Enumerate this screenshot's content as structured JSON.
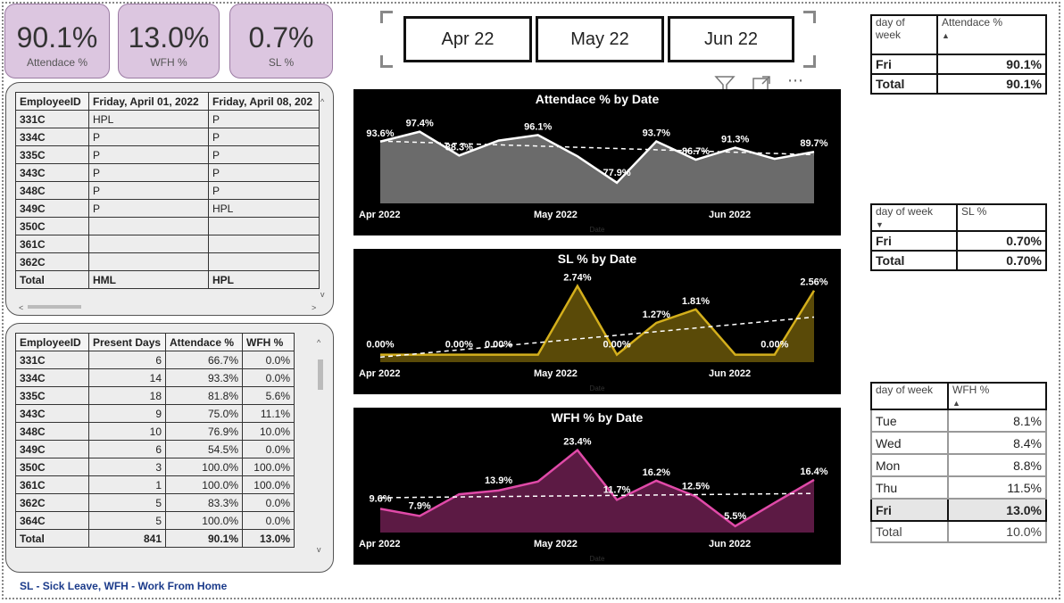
{
  "kpis": [
    {
      "value": "90.1%",
      "label": "Attendace %"
    },
    {
      "value": "13.0%",
      "label": "WFH %"
    },
    {
      "value": "0.7%",
      "label": "SL %"
    }
  ],
  "months": [
    "Apr 22",
    "May 22",
    "Jun 22"
  ],
  "attendance_table": {
    "headers": [
      "EmployeeID",
      "Friday, April 01, 2022",
      "Friday, April 08, 202"
    ],
    "rows": [
      [
        "331C",
        "HPL",
        "P"
      ],
      [
        "334C",
        "P",
        "P"
      ],
      [
        "335C",
        "P",
        "P"
      ],
      [
        "343C",
        "P",
        "P"
      ],
      [
        "348C",
        "P",
        "P"
      ],
      [
        "349C",
        "P",
        "HPL"
      ],
      [
        "350C",
        "",
        ""
      ],
      [
        "361C",
        "",
        ""
      ],
      [
        "362C",
        "",
        ""
      ]
    ],
    "total": [
      "Total",
      "HML",
      "HPL"
    ]
  },
  "summary_table": {
    "headers": [
      "EmployeeID",
      "Present Days",
      "Attendace %",
      "WFH %"
    ],
    "rows": [
      [
        "331C",
        "6",
        "66.7%",
        "0.0%"
      ],
      [
        "334C",
        "14",
        "93.3%",
        "0.0%"
      ],
      [
        "335C",
        "18",
        "81.8%",
        "5.6%"
      ],
      [
        "343C",
        "9",
        "75.0%",
        "11.1%"
      ],
      [
        "348C",
        "10",
        "76.9%",
        "10.0%"
      ],
      [
        "349C",
        "6",
        "54.5%",
        "0.0%"
      ],
      [
        "350C",
        "3",
        "100.0%",
        "100.0%"
      ],
      [
        "361C",
        "1",
        "100.0%",
        "100.0%"
      ],
      [
        "362C",
        "5",
        "83.3%",
        "0.0%"
      ],
      [
        "364C",
        "5",
        "100.0%",
        "0.0%"
      ]
    ],
    "total": [
      "Total",
      "841",
      "90.1%",
      "13.0%"
    ]
  },
  "chart_data": [
    {
      "type": "area",
      "title": "Attendace % by Date",
      "xlabel": "Date",
      "x_ticks": [
        "Apr 2022",
        "May 2022",
        "Jun 2022"
      ],
      "values": [
        93.6,
        97.4,
        88.3,
        94.0,
        96.1,
        88.0,
        77.9,
        93.7,
        86.7,
        91.3,
        87.0,
        89.7
      ],
      "data_labels": [
        {
          "i": 0,
          "text": "93.6%"
        },
        {
          "i": 1,
          "text": "97.4%"
        },
        {
          "i": 2,
          "text": "88.3%"
        },
        {
          "i": 4,
          "text": "96.1%"
        },
        {
          "i": 6,
          "text": "77.9%"
        },
        {
          "i": 7,
          "text": "93.7%"
        },
        {
          "i": 8,
          "text": "86.7%"
        },
        {
          "i": 9,
          "text": "91.3%"
        },
        {
          "i": 11,
          "text": "89.7%"
        }
      ],
      "trend": [
        93.8,
        88.6
      ],
      "ylim": [
        70,
        100
      ],
      "color": "#ffffff",
      "fill": "#6b6b6b"
    },
    {
      "type": "area",
      "title": "SL % by Date",
      "xlabel": "Date",
      "x_ticks": [
        "Apr 2022",
        "May 2022",
        "Jun 2022"
      ],
      "values": [
        0.0,
        0.0,
        0.0,
        0.0,
        0.0,
        2.74,
        0.0,
        1.27,
        1.81,
        0.0,
        0.0,
        2.56
      ],
      "data_labels": [
        {
          "i": 0,
          "text": "0.00%"
        },
        {
          "i": 2,
          "text": "0.00%"
        },
        {
          "i": 3,
          "text": "0.00%"
        },
        {
          "i": 5,
          "text": "2.74%"
        },
        {
          "i": 6,
          "text": "0.00%"
        },
        {
          "i": 7,
          "text": "1.27%"
        },
        {
          "i": 8,
          "text": "1.81%"
        },
        {
          "i": 10,
          "text": "0.00%"
        },
        {
          "i": 11,
          "text": "2.56%"
        }
      ],
      "trend": [
        -0.1,
        1.5
      ],
      "ylim": [
        -0.3,
        2.8
      ],
      "color": "#d4af1c",
      "fill": "#5a4a08"
    },
    {
      "type": "area",
      "title": "WFH % by Date",
      "xlabel": "Date",
      "x_ticks": [
        "Apr 2022",
        "May 2022",
        "Jun 2022"
      ],
      "values": [
        9.6,
        7.9,
        13.0,
        13.9,
        16.0,
        23.4,
        11.7,
        16.2,
        12.5,
        5.5,
        11.0,
        16.4
      ],
      "data_labels": [
        {
          "i": 0,
          "text": "9.6%"
        },
        {
          "i": 1,
          "text": "7.9%"
        },
        {
          "i": 3,
          "text": "13.9%"
        },
        {
          "i": 5,
          "text": "23.4%"
        },
        {
          "i": 6,
          "text": "11.7%"
        },
        {
          "i": 7,
          "text": "16.2%"
        },
        {
          "i": 8,
          "text": "12.5%"
        },
        {
          "i": 9,
          "text": "5.5%"
        },
        {
          "i": 11,
          "text": "16.4%"
        }
      ],
      "trend": [
        12.2,
        13.2
      ],
      "ylim": [
        4,
        25
      ],
      "color": "#e04aa8",
      "fill": "#5c1a44"
    }
  ],
  "dow_attendance": {
    "headers": [
      "day of week",
      "Attendace %"
    ],
    "rows": [
      [
        "Fri",
        "90.1%"
      ]
    ],
    "total": [
      "Total",
      "90.1%"
    ]
  },
  "dow_sl": {
    "headers": [
      "day of week",
      "SL %"
    ],
    "rows": [
      [
        "Fri",
        "0.70%"
      ]
    ],
    "total": [
      "Total",
      "0.70%"
    ]
  },
  "dow_wfh": {
    "headers": [
      "day of week",
      "WFH %"
    ],
    "rows": [
      [
        "Tue",
        "8.1%"
      ],
      [
        "Wed",
        "8.4%"
      ],
      [
        "Mon",
        "8.8%"
      ],
      [
        "Thu",
        "11.5%"
      ],
      [
        "Fri",
        "13.0%"
      ]
    ],
    "total": [
      "Total",
      "10.0%"
    ]
  },
  "footnote": "SL - Sick Leave, WFH - Work From Home",
  "icons": {
    "filter": "funnel-icon",
    "focus": "focus-mode-icon",
    "more": "more-options-icon"
  }
}
